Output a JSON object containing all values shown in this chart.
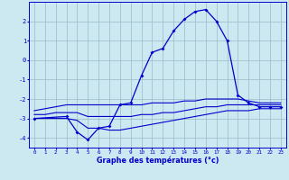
{
  "x": [
    0,
    1,
    2,
    3,
    4,
    5,
    6,
    7,
    8,
    9,
    10,
    11,
    12,
    13,
    14,
    15,
    16,
    17,
    18,
    19,
    20,
    21,
    22,
    23
  ],
  "temp_actual": [
    -3.0,
    null,
    null,
    -2.9,
    -3.7,
    -4.1,
    -3.5,
    -3.4,
    -2.3,
    -2.2,
    -0.8,
    0.4,
    0.6,
    1.5,
    2.1,
    2.5,
    2.6,
    2.0,
    1.0,
    -1.8,
    -2.2,
    -2.4,
    -2.4,
    -2.4
  ],
  "temp_min": [
    -3.0,
    -3.0,
    -3.0,
    -3.0,
    -3.1,
    -3.5,
    -3.5,
    -3.6,
    -3.6,
    -3.5,
    -3.4,
    -3.3,
    -3.2,
    -3.1,
    -3.0,
    -2.9,
    -2.8,
    -2.7,
    -2.6,
    -2.6,
    -2.6,
    -2.5,
    -2.5,
    -2.5
  ],
  "temp_max": [
    -2.6,
    -2.5,
    -2.4,
    -2.3,
    -2.3,
    -2.3,
    -2.3,
    -2.3,
    -2.3,
    -2.3,
    -2.3,
    -2.2,
    -2.2,
    -2.2,
    -2.1,
    -2.1,
    -2.0,
    -2.0,
    -2.0,
    -2.0,
    -2.1,
    -2.2,
    -2.2,
    -2.2
  ],
  "temp_mean": [
    -2.8,
    -2.8,
    -2.7,
    -2.7,
    -2.7,
    -2.9,
    -2.9,
    -2.9,
    -2.9,
    -2.9,
    -2.8,
    -2.8,
    -2.7,
    -2.7,
    -2.6,
    -2.5,
    -2.4,
    -2.4,
    -2.3,
    -2.3,
    -2.3,
    -2.3,
    -2.3,
    -2.3
  ],
  "line_color": "#0000cd",
  "bg_color": "#cce8f0",
  "grid_color": "#99bbcc",
  "xlabel": "Graphe des températures (°c)",
  "ylim": [
    -4.5,
    3.0
  ],
  "xlim": [
    -0.5,
    23.5
  ],
  "yticks": [
    -4,
    -3,
    -2,
    -1,
    0,
    1,
    2
  ],
  "xticks": [
    0,
    1,
    2,
    3,
    4,
    5,
    6,
    7,
    8,
    9,
    10,
    11,
    12,
    13,
    14,
    15,
    16,
    17,
    18,
    19,
    20,
    21,
    22,
    23
  ]
}
